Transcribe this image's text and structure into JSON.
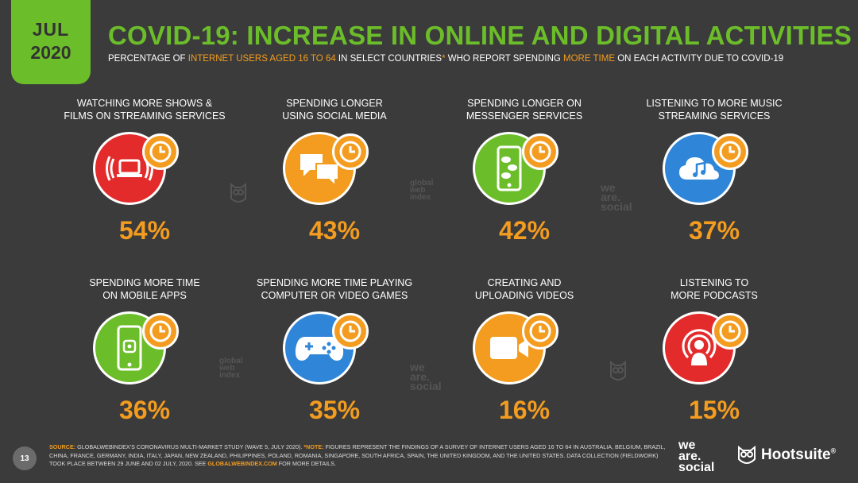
{
  "badge": {
    "month": "JUL",
    "year": "2020"
  },
  "title": "COVID-19: INCREASE IN ONLINE AND DIGITAL ACTIVITIES",
  "subtitle": {
    "p1": "PERCENTAGE OF ",
    "h1": "INTERNET USERS AGED 16 TO 64",
    "p2": " IN SELECT COUNTRIES",
    "h2": "*",
    "p3": " WHO REPORT SPENDING ",
    "h3": "MORE TIME",
    "p4": " ON EACH ACTIVITY DUE TO COVID-19"
  },
  "colors": {
    "green": "#6cbd2a",
    "orange": "#f39c1f",
    "red": "#e42b2b",
    "blue": "#2f86d8",
    "background": "#3b3b3b"
  },
  "chart_data": {
    "type": "bar",
    "categories": [
      "WATCHING MORE SHOWS & FILMS ON STREAMING SERVICES",
      "SPENDING LONGER USING SOCIAL MEDIA",
      "SPENDING LONGER ON MESSENGER SERVICES",
      "LISTENING TO MORE MUSIC STREAMING SERVICES",
      "SPENDING MORE TIME ON MOBILE APPS",
      "SPENDING MORE TIME PLAYING COMPUTER OR VIDEO GAMES",
      "CREATING AND UPLOADING VIDEOS",
      "LISTENING TO MORE PODCASTS"
    ],
    "values": [
      54,
      43,
      42,
      37,
      36,
      35,
      16,
      15
    ],
    "labels": [
      "54%",
      "43%",
      "42%",
      "37%",
      "36%",
      "35%",
      "16%",
      "15%"
    ],
    "unit": "%"
  },
  "activities": [
    {
      "line1": "WATCHING MORE SHOWS &",
      "line2": "FILMS ON STREAMING SERVICES",
      "pct": "54%",
      "icon": "streaming-laptop-icon",
      "color": "#e42b2b"
    },
    {
      "line1": "SPENDING LONGER",
      "line2": "USING SOCIAL MEDIA",
      "pct": "43%",
      "icon": "speech-bubbles-icon",
      "color": "#f39c1f"
    },
    {
      "line1": "SPENDING LONGER ON",
      "line2": "MESSENGER SERVICES",
      "pct": "42%",
      "icon": "phone-chat-icon",
      "color": "#6cbd2a"
    },
    {
      "line1": "LISTENING TO MORE MUSIC",
      "line2": "STREAMING SERVICES",
      "pct": "37%",
      "icon": "cloud-music-icon",
      "color": "#2f86d8"
    },
    {
      "line1": "SPENDING MORE TIME",
      "line2": "ON MOBILE APPS",
      "pct": "36%",
      "icon": "mobile-app-icon",
      "color": "#6cbd2a"
    },
    {
      "line1": "SPENDING MORE TIME PLAYING",
      "line2": "COMPUTER OR VIDEO GAMES",
      "pct": "35%",
      "icon": "gamepad-icon",
      "color": "#2f86d8"
    },
    {
      "line1": "CREATING AND",
      "line2": "UPLOADING VIDEOS",
      "pct": "16%",
      "icon": "video-camera-icon",
      "color": "#f39c1f"
    },
    {
      "line1": "LISTENING TO",
      "line2": "MORE PODCASTS",
      "pct": "15%",
      "icon": "podcast-icon",
      "color": "#e42b2b"
    }
  ],
  "watermarks": {
    "gwi": [
      "global",
      "web",
      "index"
    ],
    "was": [
      "we",
      "are.",
      "social"
    ]
  },
  "footer": {
    "page": "13",
    "source_label": "SOURCE:",
    "source_text": " GLOBALWEBINDEX'S CORONAVIRUS MULTI-MARKET STUDY (WAVE 5, JULY 2020). ",
    "note_label": "*NOTE:",
    "note_text": " FIGURES REPRESENT THE FINDINGS OF A SURVEY OF INTERNET USERS AGED 16 TO 64 IN AUSTRALIA, BELGIUM, BRAZIL, CHINA, FRANCE, GERMANY, INDIA, ITALY, JAPAN, NEW ZEALAND, PHILIPPINES, POLAND, ROMANIA, SINGAPORE, SOUTH AFRICA, SPAIN, THE UNITED KINGDOM, AND THE UNITED STATES. DATA COLLECTION (FIELDWORK) TOOK PLACE BETWEEN 29 JUNE AND 02 JULY, 2020. SEE ",
    "link": "GLOBALWEBINDEX.COM",
    "tail": " FOR MORE DETAILS.",
    "brand1": [
      "we",
      "are.",
      "social"
    ],
    "brand2": "Hootsuite",
    "brand2_mark": "®"
  }
}
